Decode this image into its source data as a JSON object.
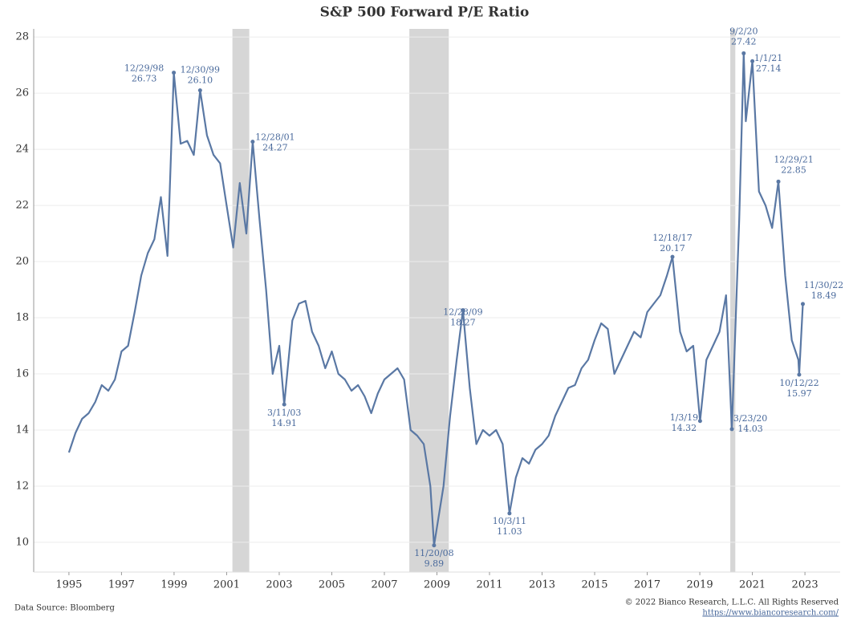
{
  "chart_data": {
    "type": "line",
    "title": "S&P 500 Forward P/E Ratio",
    "source": "Data Source: Bloomberg",
    "copyright": "© 2022 Bianco Research, L.L.C. All Rights Reserved",
    "url": "https://www.biancoresearch.com/",
    "xlim": [
      1993.66,
      2024.34
    ],
    "ylim": [
      8.94,
      28.29
    ],
    "xticks": [
      1995,
      1997,
      1999,
      2001,
      2003,
      2005,
      2007,
      2009,
      2011,
      2013,
      2015,
      2017,
      2019,
      2021,
      2023
    ],
    "yticks": [
      10,
      12,
      14,
      16,
      18,
      20,
      22,
      24,
      26,
      28
    ],
    "grid": true,
    "shaded": [
      [
        2001.22,
        2001.86
      ],
      [
        2007.95,
        2009.45
      ],
      [
        2020.16,
        2020.35
      ]
    ],
    "shade_color": "#d6d6d6",
    "series": [
      {
        "name": "S&P 500 Forward P/E",
        "color": "#5a78a4",
        "x": [
          1995.0,
          1995.25,
          1995.5,
          1995.75,
          1996.0,
          1996.25,
          1996.5,
          1996.75,
          1997.0,
          1997.25,
          1997.5,
          1997.75,
          1998.0,
          1998.25,
          1998.5,
          1998.75,
          1998.99,
          1999.25,
          1999.5,
          1999.75,
          1999.99,
          2000.25,
          2000.5,
          2000.75,
          2001.0,
          2001.25,
          2001.5,
          2001.75,
          2001.99,
          2002.25,
          2002.5,
          2002.75,
          2003.0,
          2003.19,
          2003.5,
          2003.75,
          2004.0,
          2004.25,
          2004.5,
          2004.75,
          2005.0,
          2005.25,
          2005.5,
          2005.75,
          2006.0,
          2006.25,
          2006.5,
          2006.75,
          2007.0,
          2007.25,
          2007.5,
          2007.75,
          2008.0,
          2008.25,
          2008.5,
          2008.75,
          2008.89,
          2009.25,
          2009.5,
          2009.75,
          2009.99,
          2010.25,
          2010.5,
          2010.75,
          2011.0,
          2011.25,
          2011.5,
          2011.76,
          2012.0,
          2012.25,
          2012.5,
          2012.75,
          2013.0,
          2013.25,
          2013.5,
          2013.75,
          2014.0,
          2014.25,
          2014.5,
          2014.75,
          2015.0,
          2015.25,
          2015.5,
          2015.75,
          2016.0,
          2016.25,
          2016.5,
          2016.75,
          2017.0,
          2017.25,
          2017.5,
          2017.75,
          2017.96,
          2018.25,
          2018.5,
          2018.75,
          2019.01,
          2019.25,
          2019.5,
          2019.75,
          2020.0,
          2020.22,
          2020.5,
          2020.67,
          2020.75,
          2021.0,
          2021.25,
          2021.5,
          2021.75,
          2021.99,
          2022.25,
          2022.5,
          2022.75,
          2022.78,
          2022.92
        ],
        "values": [
          13.2,
          13.9,
          14.4,
          14.6,
          15.0,
          15.6,
          15.4,
          15.8,
          16.8,
          17.0,
          18.2,
          19.5,
          20.3,
          20.8,
          22.3,
          20.2,
          26.73,
          24.2,
          24.3,
          23.8,
          26.1,
          24.5,
          23.8,
          23.5,
          22.0,
          20.5,
          22.8,
          21.0,
          24.27,
          21.5,
          19.0,
          16.0,
          17.0,
          14.91,
          17.9,
          18.5,
          18.6,
          17.5,
          17.0,
          16.2,
          16.8,
          16.0,
          15.8,
          15.4,
          15.6,
          15.2,
          14.6,
          15.3,
          15.8,
          16.0,
          16.2,
          15.8,
          14.0,
          13.8,
          13.5,
          12.0,
          9.89,
          12.0,
          14.5,
          16.5,
          18.27,
          15.5,
          13.5,
          14.0,
          13.8,
          14.0,
          13.5,
          11.03,
          12.3,
          13.0,
          12.8,
          13.3,
          13.5,
          13.8,
          14.5,
          15.0,
          15.5,
          15.6,
          16.2,
          16.5,
          17.2,
          17.8,
          17.6,
          16.0,
          16.5,
          17.0,
          17.5,
          17.3,
          18.2,
          18.5,
          18.8,
          19.5,
          20.17,
          17.5,
          16.8,
          17.0,
          14.32,
          16.5,
          17.0,
          17.5,
          18.8,
          14.03,
          21.5,
          27.42,
          25.0,
          27.14,
          22.5,
          22.0,
          21.2,
          22.85,
          19.5,
          17.2,
          16.5,
          15.97,
          18.49
        ]
      }
    ],
    "annotations": [
      {
        "date": "12/29/98",
        "x": 1998.99,
        "value": 26.73,
        "label": "26.73"
      },
      {
        "date": "12/30/99",
        "x": 1999.99,
        "value": 26.1,
        "label": "26.10"
      },
      {
        "date": "12/28/01",
        "x": 2001.99,
        "value": 24.27,
        "label": "24.27"
      },
      {
        "date": "3/11/03",
        "x": 2003.19,
        "value": 14.91,
        "label": "14.91"
      },
      {
        "date": "11/20/08",
        "x": 2008.89,
        "value": 9.89,
        "label": "9.89"
      },
      {
        "date": "12/28/09",
        "x": 2009.99,
        "value": 18.27,
        "label": "18.27"
      },
      {
        "date": "10/3/11",
        "x": 2011.76,
        "value": 11.03,
        "label": "11.03"
      },
      {
        "date": "12/18/17",
        "x": 2017.96,
        "value": 20.17,
        "label": "20.17"
      },
      {
        "date": "1/3/19",
        "x": 2019.01,
        "value": 14.32,
        "label": "14.32"
      },
      {
        "date": "3/23/20",
        "x": 2020.22,
        "value": 14.03,
        "label": "14.03"
      },
      {
        "date": "9/2/20",
        "x": 2020.67,
        "value": 27.42,
        "label": "27.42"
      },
      {
        "date": "1/1/21",
        "x": 2021.0,
        "value": 27.14,
        "label": "27.14"
      },
      {
        "date": "12/29/21",
        "x": 2021.99,
        "value": 22.85,
        "label": "22.85"
      },
      {
        "date": "10/12/22",
        "x": 2022.78,
        "value": 15.97,
        "label": "15.97"
      },
      {
        "date": "11/30/22",
        "x": 2022.92,
        "value": 18.49,
        "label": "18.49"
      }
    ]
  }
}
